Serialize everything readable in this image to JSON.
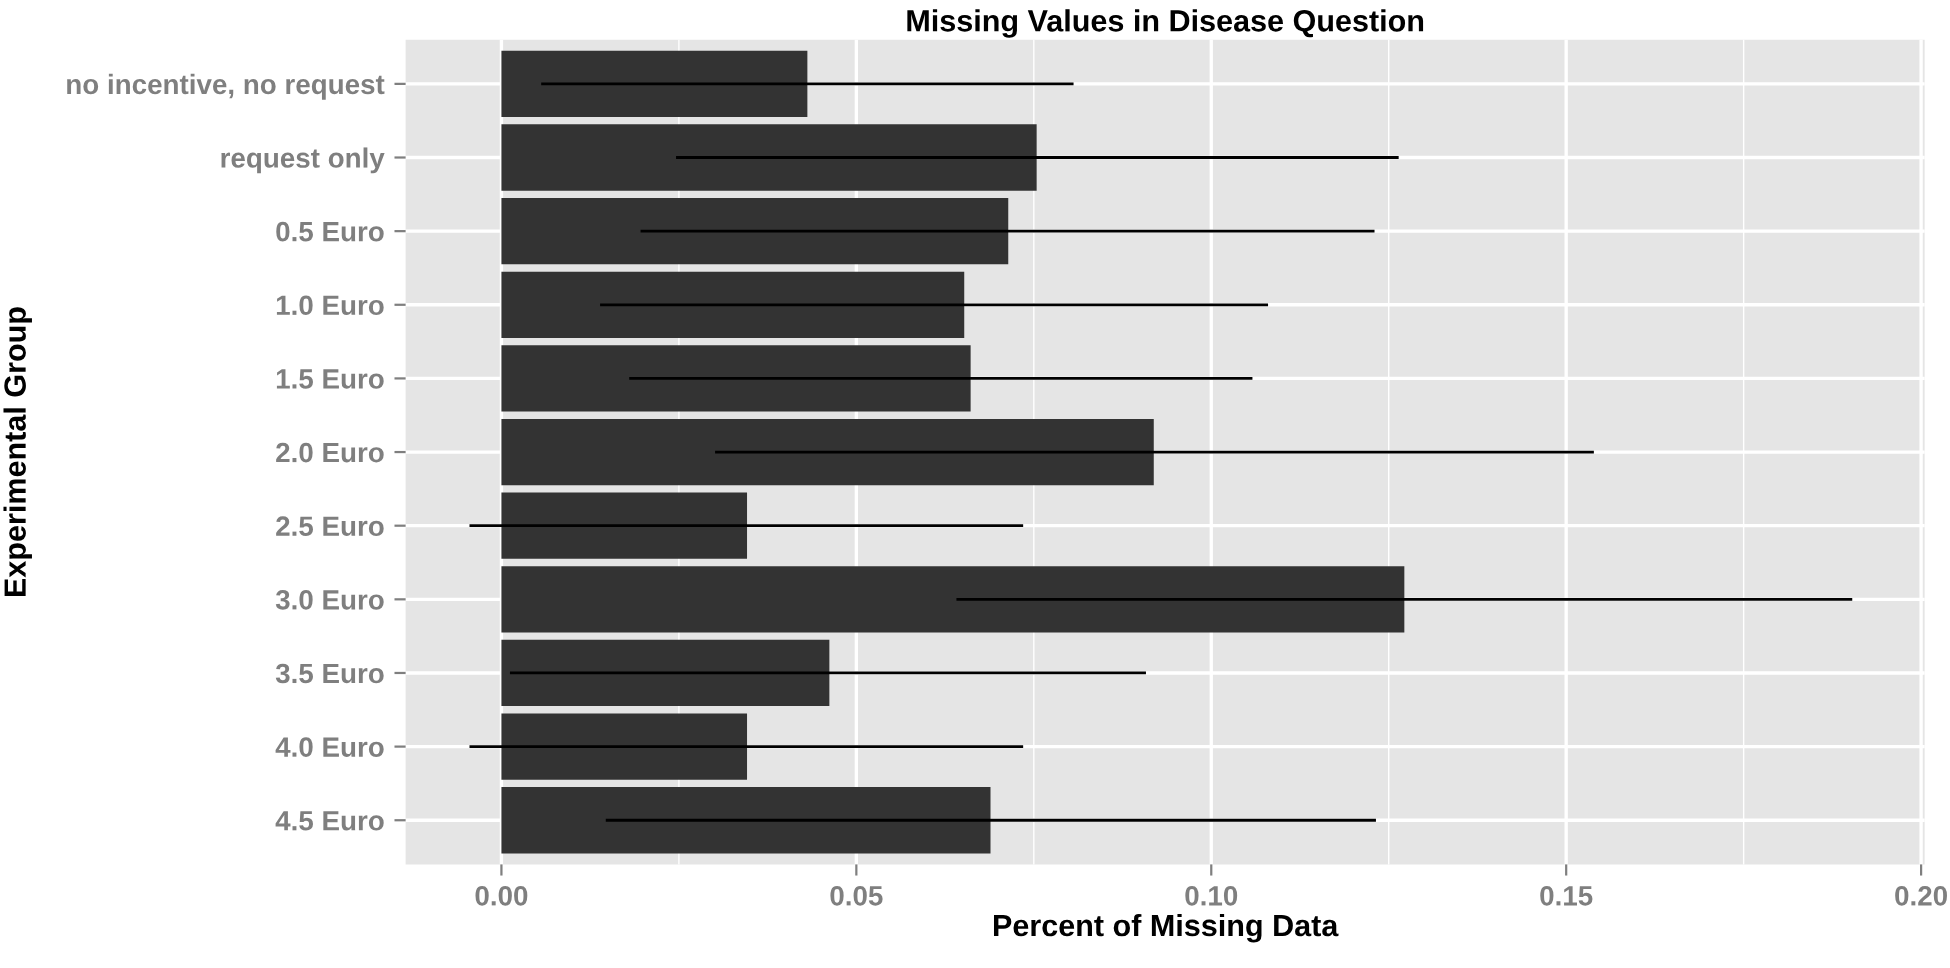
{
  "chart_data": {
    "type": "bar",
    "orientation": "horizontal",
    "title": "Missing Values in Disease Question",
    "xlabel": "Percent of Missing Data",
    "ylabel": "Experimental Group",
    "categories": [
      "no incentive, no request",
      "request only",
      "0.5 Euro",
      "1.0 Euro",
      "1.5 Euro",
      "2.0 Euro",
      "2.5 Euro",
      "3.0 Euro",
      "3.5 Euro",
      "4.0 Euro",
      "4.5 Euro"
    ],
    "values": [
      0.0431,
      0.0754,
      0.0714,
      0.0652,
      0.0661,
      0.0919,
      0.0346,
      0.1272,
      0.0462,
      0.0346,
      0.0689
    ],
    "errors": [
      [
        0.0056,
        0.0806
      ],
      [
        0.0246,
        0.1264
      ],
      [
        0.0196,
        0.123
      ],
      [
        0.0139,
        0.108
      ],
      [
        0.018,
        0.1058
      ],
      [
        0.0301,
        0.1539
      ],
      [
        -0.0045,
        0.0735
      ],
      [
        0.0641,
        0.1903
      ],
      [
        0.0012,
        0.0908
      ],
      [
        -0.0045,
        0.0735
      ],
      [
        0.0147,
        0.1232
      ]
    ],
    "color": "#333333",
    "xlim": [
      -0.0135,
      0.2005
    ],
    "xticks": [
      {
        "value": 0,
        "label": "0.00"
      },
      {
        "value": 0.025,
        "label": null
      },
      0.05,
      {
        "value": 0.075,
        "label": null
      },
      {
        "value": 0.1,
        "label": "0.10"
      },
      {
        "value": 0.125,
        "label": null
      },
      0.15,
      {
        "value": 0.175,
        "label": null
      },
      {
        "value": 0.2,
        "label": "0.20"
      }
    ],
    "grid": true,
    "legend": false
  }
}
